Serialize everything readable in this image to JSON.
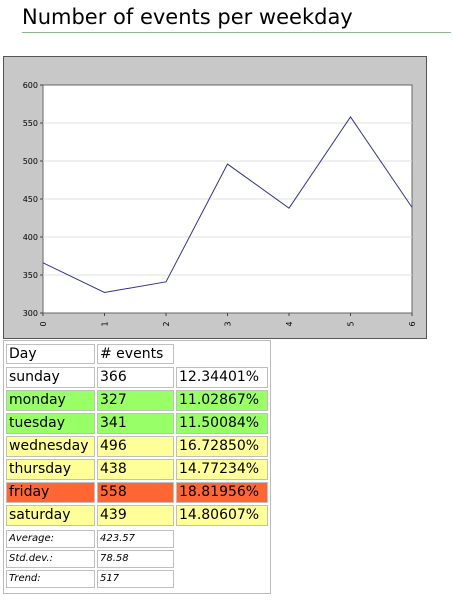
{
  "page": {
    "title": "Number of events per weekday"
  },
  "chart_data": {
    "type": "line",
    "title": "",
    "xlabel": "",
    "ylabel": "",
    "x": [
      0,
      1,
      2,
      3,
      4,
      5,
      6
    ],
    "x_ticks": [
      "0",
      "1",
      "2",
      "3",
      "4",
      "5",
      "6"
    ],
    "y_ticks": [
      "300",
      "350",
      "400",
      "450",
      "500",
      "550",
      "600"
    ],
    "xlim": [
      0,
      6
    ],
    "ylim": [
      300,
      600
    ],
    "grid": true,
    "series": [
      {
        "values": [
          366,
          327,
          341,
          496,
          438,
          558,
          439
        ],
        "color": "#33338f"
      }
    ]
  },
  "table": {
    "headers": {
      "day": "Day",
      "events": "# events"
    },
    "rows": [
      {
        "day": "sunday",
        "events": "366",
        "pct": "12.34401%",
        "color": "#ffffff"
      },
      {
        "day": "monday",
        "events": "327",
        "pct": "11.02867%",
        "color": "#99ff66"
      },
      {
        "day": "tuesday",
        "events": "341",
        "pct": "11.50084%",
        "color": "#99ff66"
      },
      {
        "day": "wednesday",
        "events": "496",
        "pct": "16.72850%",
        "color": "#ffff99"
      },
      {
        "day": "thursday",
        "events": "438",
        "pct": "14.77234%",
        "color": "#ffff99"
      },
      {
        "day": "friday",
        "events": "558",
        "pct": "18.81956%",
        "color": "#ff6633"
      },
      {
        "day": "saturday",
        "events": "439",
        "pct": "14.80607%",
        "color": "#ffff99"
      }
    ],
    "stats": [
      {
        "label": "Average:",
        "value": "423.57"
      },
      {
        "label": "Std.dev.:",
        "value": "78.58"
      },
      {
        "label": "Trend:",
        "value": "517"
      }
    ]
  }
}
